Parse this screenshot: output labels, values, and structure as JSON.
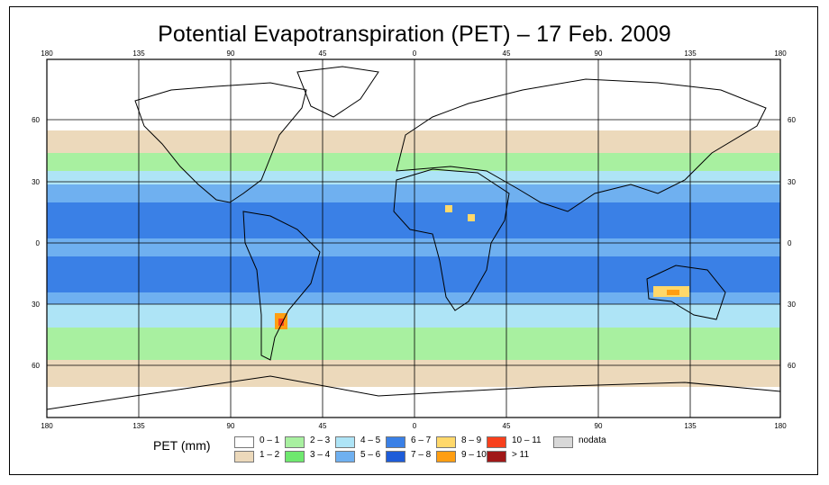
{
  "title": "Potential Evapotranspiration (PET) – 17 Feb. 2009",
  "axes": {
    "top_lon_ticks": [
      "180",
      "135",
      "90",
      "45",
      "0",
      "45",
      "90",
      "135",
      "180"
    ],
    "bottom_lon_ticks": [
      "180",
      "135",
      "90",
      "45",
      "0",
      "45",
      "90",
      "135",
      "180"
    ],
    "left_lat_ticks": [
      "60",
      "30",
      "0",
      "30",
      "60"
    ],
    "right_lat_ticks": [
      "60",
      "30",
      "0",
      "30",
      "60"
    ]
  },
  "legend": {
    "label": "PET (mm)",
    "items": [
      {
        "label": "0 – 1",
        "color": "#ffffff"
      },
      {
        "label": "1 – 2",
        "color": "#ecd9bb"
      },
      {
        "label": "2 – 3",
        "color": "#a8f0a0"
      },
      {
        "label": "3 – 4",
        "color": "#6ee86e"
      },
      {
        "label": "4 – 5",
        "color": "#aee4f6"
      },
      {
        "label": "5 – 6",
        "color": "#6fb0f0"
      },
      {
        "label": "6 – 7",
        "color": "#3a80e6"
      },
      {
        "label": "7 – 8",
        "color": "#1e5cd8"
      },
      {
        "label": "8 – 9",
        "color": "#ffd86a"
      },
      {
        "label": "9 – 10",
        "color": "#ff9e12"
      },
      {
        "label": "10 – 11",
        "color": "#f8401c"
      },
      {
        "label": "> 11",
        "color": "#a01818"
      },
      {
        "label": "nodata",
        "color": "#d8d8d8"
      }
    ]
  }
}
